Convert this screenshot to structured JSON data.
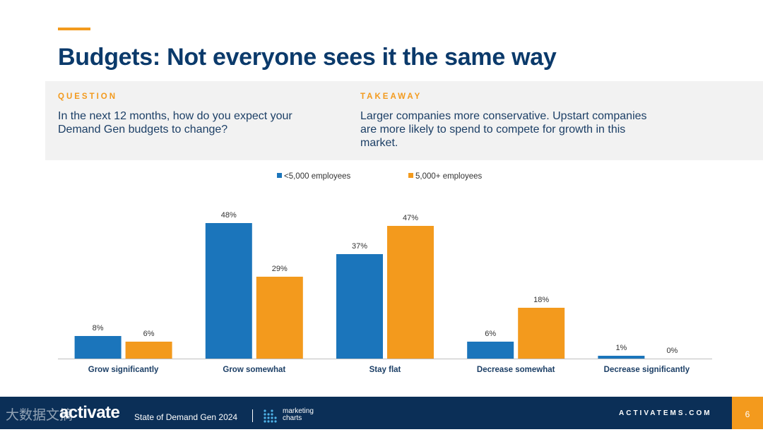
{
  "slide": {
    "title": "Budgets: Not everyone sees it the same way",
    "question_label": "QUESTION",
    "question_text": "In the next 12 months, how do you expect your Demand Gen budgets to change?",
    "takeaway_label": "TAKEAWAY",
    "takeaway_text": "Larger companies more conservative. Upstart companies are more likely to spend to compete for growth in this market."
  },
  "colors": {
    "navy": "#0b3a6b",
    "orange": "#f39a1d",
    "blue": "#1b75bb",
    "box_bg": "#f2f2f2",
    "footer_bg": "#0b2f57"
  },
  "chart_data": {
    "type": "bar",
    "categories": [
      "Grow significantly",
      "Grow somewhat",
      "Stay flat",
      "Decrease somewhat",
      "Decrease significantly"
    ],
    "series": [
      {
        "name": "<5,000 employees",
        "values": [
          8,
          48,
          37,
          6,
          1
        ],
        "color": "#1b75bb"
      },
      {
        "name": "5,000+ employees",
        "values": [
          6,
          29,
          47,
          18,
          0
        ],
        "color": "#f39a1d"
      }
    ],
    "value_suffix": "%",
    "ylim": [
      0,
      50
    ],
    "legend_position": "top-center",
    "grid": false
  },
  "footer": {
    "brand": "activate",
    "watermark": "大数据文摘",
    "report": "State of Demand Gen 2024",
    "partner_line1": "marketing",
    "partner_line2": "charts",
    "partner_icon": "marketingcharts-dots-icon",
    "site": "ACTIVATEMS.COM",
    "page": "6"
  }
}
